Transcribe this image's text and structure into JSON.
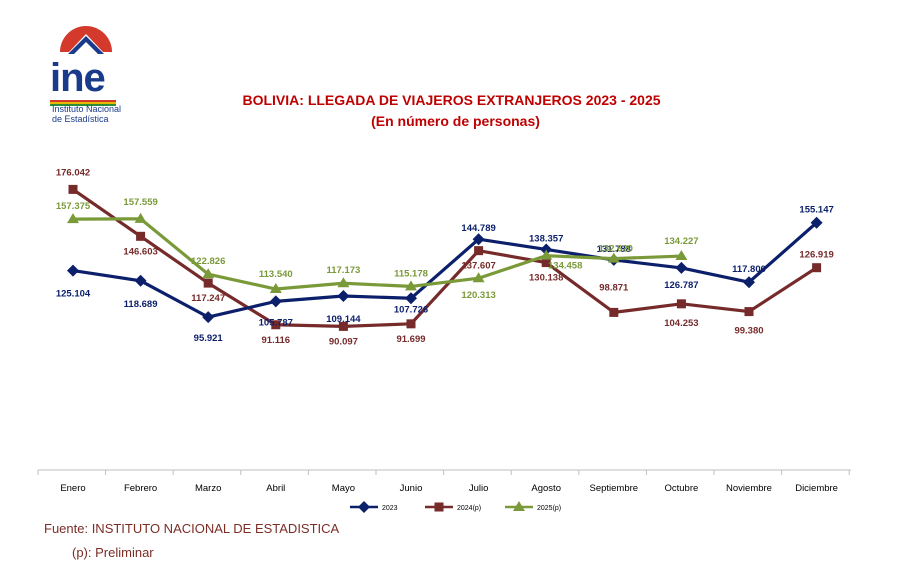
{
  "logo": {
    "name": "ine",
    "line1": "Instituto Nacional",
    "line2": "de Estadística"
  },
  "chart_data": {
    "type": "line",
    "title": "BOLIVIA: LLEGADA DE VIAJEROS EXTRANJEROS 2023 - 2025",
    "subtitle": "(En número de personas)",
    "xlabel": "",
    "ylabel": "",
    "ylim": [
      0,
      200000
    ],
    "grid": false,
    "legend_position": "bottom",
    "categories": [
      "Enero",
      "Febrero",
      "Marzo",
      "Abril",
      "Mayo",
      "Junio",
      "Julio",
      "Agosto",
      "Septiembre",
      "Octubre",
      "Noviembre",
      "Diciembre"
    ],
    "series": [
      {
        "name": "2023",
        "color": "#0b1f6b",
        "marker": "diamond",
        "values": [
          125104,
          118689,
          95921,
          105787,
          109144,
          107726,
          144789,
          138357,
          131788,
          126787,
          117800,
          155147
        ],
        "labels": [
          "125.104",
          "118.689",
          "95.921",
          "105.787",
          "109.144",
          "107.726",
          "144.789",
          "138.357",
          "131.788",
          "126.787",
          "117.800",
          "155.147"
        ]
      },
      {
        "name": "2024(p)",
        "color": "#762a2a",
        "marker": "square",
        "values": [
          176042,
          146603,
          117247,
          91116,
          90097,
          91699,
          137607,
          130138,
          98871,
          104253,
          99380,
          126919
        ],
        "labels": [
          "176.042",
          "146.603",
          "117.247",
          "91.116",
          "90.097",
          "91.699",
          "137.607",
          "130.138",
          "98.871",
          "104.253",
          "99.380",
          "126.919"
        ]
      },
      {
        "name": "2025(p)",
        "color": "#7a9a3a",
        "marker": "triangle",
        "values": [
          157375,
          157559,
          122826,
          113540,
          117173,
          115178,
          120313,
          134458,
          132620,
          134227,
          null,
          null
        ],
        "labels": [
          "157.375",
          "157.559",
          "122.826",
          "113.540",
          "117.173",
          "115.178",
          "120.313",
          "134.458",
          "132.620",
          "134.227",
          null,
          null
        ]
      }
    ]
  },
  "footer": {
    "source": "Fuente: INSTITUTO NACIONAL DE ESTADISTICA",
    "note": "(p): Preliminar"
  }
}
